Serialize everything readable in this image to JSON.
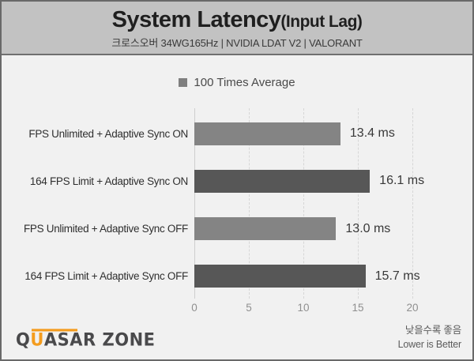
{
  "header": {
    "title_main": "System Latency",
    "title_sub": "(Input Lag)",
    "subtitle": "크로스오버 34WG165Hz  |  NVIDIA LDAT V2  |  VALORANT"
  },
  "legend": {
    "label": "100 Times Average",
    "swatch_color": "#7f7f7f"
  },
  "chart_data": {
    "type": "bar",
    "orientation": "horizontal",
    "title": "System Latency(Input Lag)",
    "subtitle": "크로스오버 34WG165Hz | NVIDIA LDAT V2 | VALORANT",
    "legend_entries": [
      "100 Times Average"
    ],
    "categories": [
      "FPS Unlimited + Adaptive Sync ON",
      "164 FPS Limit + Adaptive Sync ON",
      "FPS Unlimited + Adaptive Sync OFF",
      "164 FPS Limit + Adaptive Sync OFF"
    ],
    "values": [
      13.4,
      16.1,
      13.0,
      15.7
    ],
    "value_labels": [
      "13.4 ms",
      "16.1 ms",
      "13.0 ms",
      "15.7 ms"
    ],
    "unit": "ms",
    "bar_colors": [
      "#848484",
      "#575757",
      "#848484",
      "#575757"
    ],
    "xlim": [
      0,
      20
    ],
    "xticks": [
      0,
      5,
      10,
      15,
      20
    ],
    "grid": "vertical-dashed",
    "note": "Lower is Better"
  },
  "footer": {
    "logo_q": "Q",
    "logo_u": "U",
    "logo_rest": "ASAR ZONE",
    "note_ko": "낮을수록 좋음",
    "note_en": "Lower is Better"
  },
  "colors": {
    "header_bg": "#c2c2c2",
    "body_bg": "#f1f1f1",
    "frame_border": "#696969",
    "bar_light": "#848484",
    "bar_dark": "#575757",
    "logo_accent": "#f49c1e"
  }
}
